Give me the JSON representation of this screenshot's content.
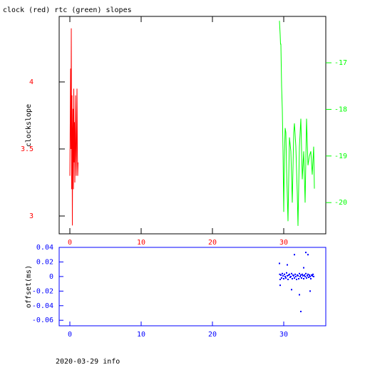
{
  "chart_data": [
    {
      "type": "line",
      "title": "clock (red) rtc (green) slopes",
      "ylabel": "clockslope",
      "xlim": [
        -1.5,
        35.9
      ],
      "xticks": [
        0,
        10,
        20,
        30
      ],
      "ylim": [
        2.867,
        4.489
      ],
      "yticks": [
        3,
        3.5,
        4
      ],
      "y2lim": [
        -20.67,
        -16.005
      ],
      "y2ticks": [
        -20,
        -19,
        -18,
        -17
      ],
      "series": [
        {
          "color": "#ff0000",
          "x": [
            0.0,
            0.05,
            0.1,
            0.15,
            0.2,
            0.25,
            0.3,
            0.35,
            0.4,
            0.45,
            0.5,
            0.55,
            0.6,
            0.65,
            0.7,
            0.75,
            0.8,
            0.85,
            0.9,
            0.95,
            1.0,
            1.05,
            1.1,
            1.15
          ],
          "values": [
            3.3,
            3.7,
            4.1,
            3.5,
            4.4,
            3.2,
            3.9,
            2.93,
            3.6,
            3.8,
            3.2,
            3.95,
            3.4,
            3.7,
            3.25,
            3.55,
            3.9,
            3.45,
            3.3,
            3.6,
            3.95,
            3.5,
            3.3,
            3.4
          ]
        },
        {
          "color": "#00ff00",
          "axis": "y2",
          "x": [
            29.4,
            29.5,
            29.55,
            29.6,
            29.7,
            29.8,
            29.9,
            30.0,
            30.1,
            30.2,
            30.3,
            30.4,
            30.6,
            30.8,
            31.0,
            31.2,
            31.4,
            31.5,
            31.7,
            31.9,
            32.0,
            32.2,
            32.4,
            32.6,
            32.8,
            33.0,
            33.2,
            33.4,
            33.6,
            33.8,
            34.0,
            34.2,
            34.3
          ],
          "values": [
            -16.1,
            -16.4,
            -16.6,
            -16.6,
            -17.5,
            -18.0,
            -18.9,
            -20.2,
            -19.0,
            -18.4,
            -18.5,
            -19.3,
            -20.4,
            -18.6,
            -18.9,
            -20.0,
            -18.5,
            -18.3,
            -18.8,
            -19.8,
            -20.5,
            -18.8,
            -18.2,
            -19.5,
            -18.9,
            -20.0,
            -18.2,
            -19.2,
            -19.0,
            -18.9,
            -19.4,
            -18.8,
            -19.7
          ]
        }
      ]
    },
    {
      "type": "scatter",
      "ylabel": "offset(ms)",
      "xlim": [
        -1.5,
        35.9
      ],
      "xticks": [
        0,
        10,
        20,
        30
      ],
      "ylim": [
        -0.0676,
        0.04
      ],
      "yticks": [
        -0.06,
        -0.04,
        -0.02,
        0,
        0.02,
        0.04
      ],
      "color": "#0000ff",
      "x": [
        29.4,
        29.45,
        29.5,
        29.6,
        29.7,
        29.8,
        29.9,
        30.0,
        30.1,
        30.2,
        30.3,
        30.4,
        30.5,
        30.6,
        30.7,
        30.8,
        30.9,
        31.0,
        31.1,
        31.2,
        31.3,
        31.4,
        31.5,
        31.6,
        31.7,
        31.8,
        31.9,
        32.0,
        32.1,
        32.2,
        32.3,
        32.4,
        32.5,
        32.6,
        32.7,
        32.8,
        32.9,
        33.0,
        33.1,
        33.2,
        33.3,
        33.4,
        33.5,
        33.6,
        33.7,
        33.8,
        33.9,
        34.0,
        34.1,
        34.2,
        29.5,
        30.5,
        31.5,
        32.2,
        32.4,
        33.1,
        33.4,
        31.1,
        32.8,
        33.7
      ],
      "values": [
        0.018,
        0.003,
        -0.004,
        0.002,
        -0.002,
        0.004,
        0.001,
        -0.003,
        0.003,
        0.0,
        -0.002,
        0.005,
        0.001,
        -0.004,
        0.002,
        0.003,
        -0.001,
        0.0,
        0.004,
        -0.003,
        0.002,
        0.001,
        -0.002,
        0.003,
        0.0,
        -0.004,
        0.002,
        0.001,
        -0.003,
        0.004,
        0.0,
        0.002,
        -0.002,
        0.003,
        0.001,
        -0.003,
        0.002,
        0.0,
        0.004,
        -0.002,
        0.001,
        0.003,
        -0.001,
        0.002,
        0.0,
        -0.003,
        0.002,
        0.001,
        0.003,
        0.0,
        -0.012,
        0.016,
        0.03,
        -0.025,
        -0.048,
        0.033,
        0.03,
        -0.018,
        0.012,
        -0.02
      ]
    }
  ],
  "footer": "2020-03-29 info"
}
